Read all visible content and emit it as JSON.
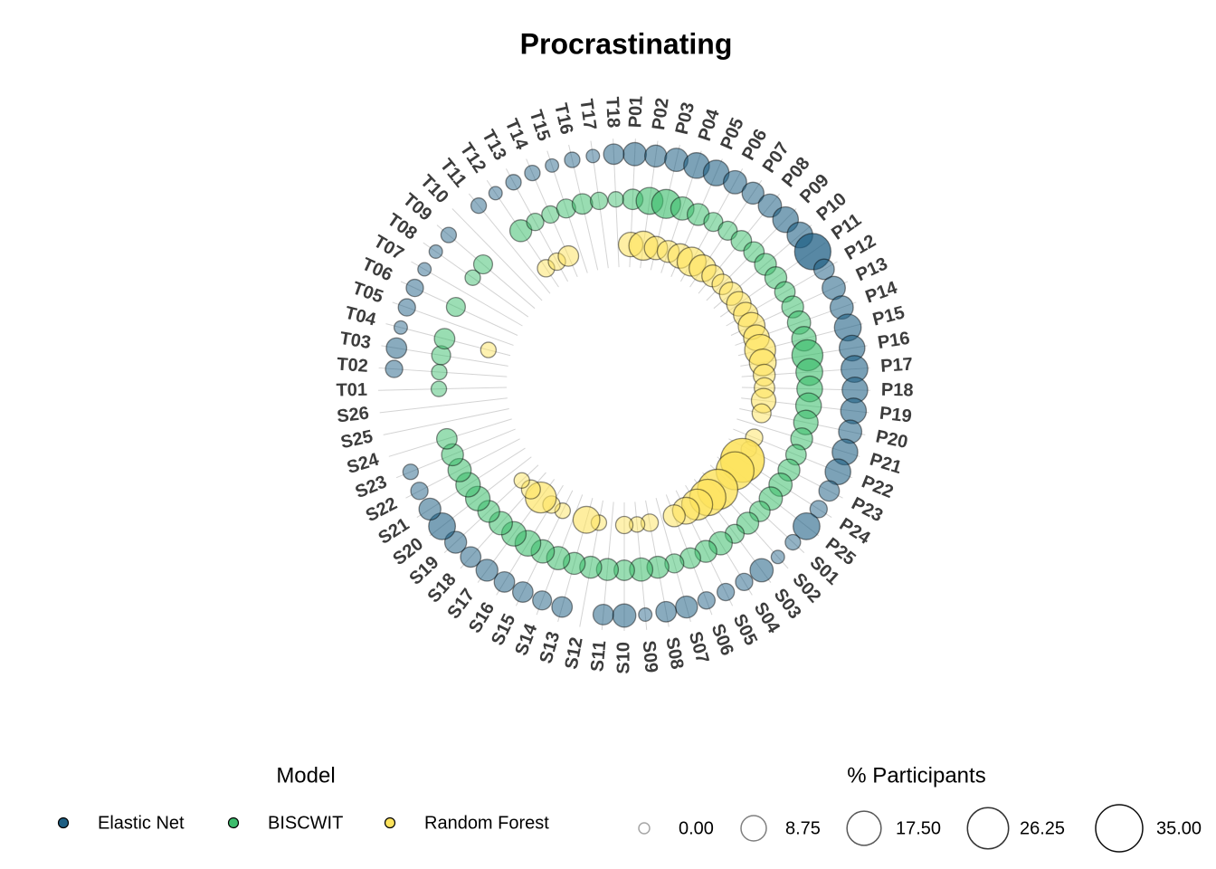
{
  "chart_data": {
    "type": "radial-bubble",
    "title": "Procrastinating",
    "categories": [
      "P01",
      "P02",
      "P03",
      "P04",
      "P05",
      "P06",
      "P07",
      "P08",
      "P09",
      "P10",
      "P11",
      "P12",
      "P13",
      "P14",
      "P15",
      "P16",
      "P17",
      "P18",
      "P19",
      "P20",
      "P21",
      "P22",
      "P23",
      "P24",
      "P25",
      "S01",
      "S02",
      "S03",
      "S04",
      "S05",
      "S06",
      "S07",
      "S08",
      "S09",
      "S10",
      "S11",
      "S12",
      "S13",
      "S14",
      "S15",
      "S16",
      "S17",
      "S18",
      "S19",
      "S20",
      "S21",
      "S22",
      "S23",
      "S24",
      "S25",
      "S26",
      "T01",
      "T02",
      "T03",
      "T04",
      "T05",
      "T06",
      "T07",
      "T08",
      "T09",
      "T10",
      "T11",
      "T12",
      "T13",
      "T14",
      "T15",
      "T16",
      "T17",
      "T18"
    ],
    "legend_title": "Model",
    "series": [
      {
        "name": "Elastic Net",
        "color": "#1d5e83",
        "values": [
          7,
          6,
          7,
          9,
          9,
          7,
          6,
          7,
          9,
          9,
          20,
          5,
          7,
          7,
          10,
          9,
          10,
          9,
          9,
          7,
          9,
          9,
          5,
          3,
          10,
          2,
          1,
          7,
          3,
          3,
          3,
          6,
          5,
          1,
          7,
          5,
          null,
          5,
          4,
          5,
          5,
          6,
          5,
          6,
          10,
          6,
          3,
          2,
          null,
          null,
          null,
          null,
          3,
          5,
          1,
          3,
          3,
          1,
          1,
          2,
          null,
          2,
          1,
          2,
          2,
          1,
          2,
          1,
          5
        ]
      },
      {
        "name": "BISCWIT",
        "color": "#3cbd6c",
        "values": [
          5,
          10,
          12,
          7,
          6,
          4,
          4,
          5,
          5,
          6,
          6,
          5,
          6,
          7,
          8,
          14,
          10,
          9,
          9,
          8,
          6,
          5,
          6,
          7,
          7,
          5,
          6,
          4,
          7,
          6,
          5,
          4,
          6,
          7,
          5,
          6,
          6,
          6,
          7,
          7,
          9,
          8,
          7,
          6,
          8,
          8,
          7,
          6,
          5,
          null,
          null,
          2,
          2,
          4,
          5,
          null,
          4,
          null,
          2,
          4,
          null,
          null,
          6,
          3,
          3,
          4,
          5,
          3,
          2
        ]
      },
      {
        "name": "Random Forest",
        "color": "#fde35d",
        "values": [
          8,
          12,
          7,
          6,
          8,
          12,
          10,
          6,
          5,
          7,
          8,
          8,
          10,
          9,
          14,
          10,
          6,
          5,
          8,
          4,
          null,
          3,
          2,
          30,
          22,
          null,
          25,
          20,
          14,
          10,
          6,
          null,
          3,
          2,
          3,
          null,
          2,
          10,
          null,
          2,
          3,
          14,
          4,
          2,
          null,
          null,
          null,
          null,
          null,
          null,
          null,
          null,
          null,
          null,
          2,
          null,
          null,
          null,
          null,
          null,
          null,
          null,
          3,
          3,
          5,
          null,
          null,
          null,
          null
        ]
      }
    ],
    "size_title": "% Participants",
    "size_lim": [
      0,
      35
    ],
    "size_ticks": [
      {
        "value": 0,
        "label": "0.00"
      },
      8.75,
      {
        "value": 17.5,
        "label": "17.50"
      },
      26.25,
      {
        "value": 35,
        "label": "35.00"
      }
    ]
  }
}
